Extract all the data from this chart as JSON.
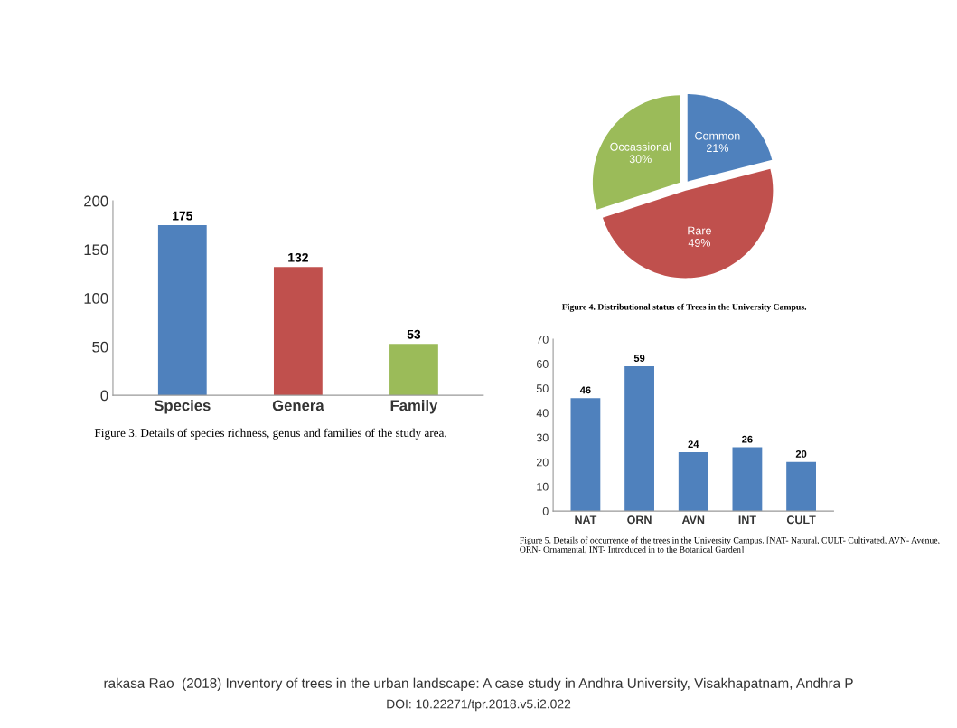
{
  "chart_data": [
    {
      "type": "bar",
      "categories": [
        "Species",
        "Genera",
        "Family"
      ],
      "values": [
        175,
        132,
        53
      ],
      "colors": [
        "#4f81bd",
        "#c0504d",
        "#9bbb59"
      ],
      "ylim": [
        0,
        200
      ],
      "yticks": [
        0,
        50,
        100,
        150,
        200
      ],
      "data_labels": true,
      "grid": false,
      "annotations": [
        "Figure 3. Details of species richness, genus and families of the study area.",
        "rakasa Rao  (2018) Inventory of trees in the urban landscape: A case study in Andhra University, Visakhapatnam, Andhra P",
        "DOI: 10.22271/tpr.2018.v5.i2.022"
      ]
    },
    {
      "type": "pie",
      "categories": [
        "Common",
        "Rare",
        "Occassional"
      ],
      "values": [
        21,
        49,
        30
      ],
      "colors": [
        "#4f81bd",
        "#c0504d",
        "#9bbb59"
      ],
      "value_labels": [
        "21%",
        "49%",
        "30%"
      ],
      "annotations": [
        "Figure 4. Distributional status of Trees in the University Campus."
      ]
    },
    {
      "type": "bar",
      "categories": [
        "NAT",
        "ORN",
        "AVN",
        "INT",
        "CULT"
      ],
      "values": [
        46,
        59,
        24,
        26,
        20
      ],
      "color": "#4f81bd",
      "ylim": [
        0,
        70
      ],
      "yticks": [
        0,
        10,
        20,
        30,
        40,
        50,
        60,
        70
      ],
      "data_labels": true,
      "grid": false,
      "annotations": [
        "Figure 5. Details of occurrence of the trees in the University Campus. [NAT- Natural, CULT- Cultivated, AVN- Avenue, ORN- Ornamental, INT- Introduced in to the Botanical Garden]"
      ]
    }
  ]
}
